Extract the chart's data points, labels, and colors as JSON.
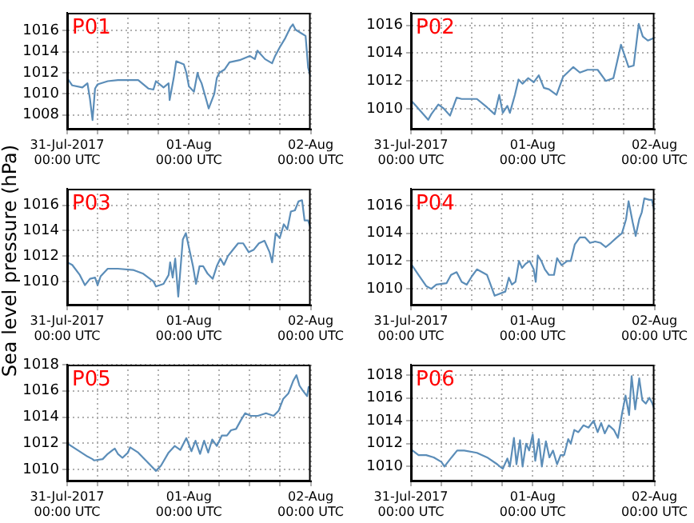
{
  "chart_data": [
    {
      "type": "line",
      "title": "P01",
      "color": "#5b8db8",
      "xlim": [
        "2017-07-31T00:00",
        "2017-08-02T00:00"
      ],
      "ylim": [
        1006.6,
        1017.7
      ],
      "yticks": [
        1008,
        1010,
        1012,
        1014,
        1016
      ],
      "grid": true,
      "legend": false,
      "marker": "none",
      "line_style": "solid",
      "xticks": [
        {
          "value": "2017-07-31T00:00",
          "label": "31-Jul-2017\n00:00 UTC"
        },
        {
          "value": "2017-07-31T06:00",
          "label": null
        },
        {
          "value": "2017-07-31T12:00",
          "label": null
        },
        {
          "value": "2017-07-31T18:00",
          "label": null
        },
        {
          "value": "2017-08-01T00:00",
          "label": "01-Aug\n00:00 UTC"
        },
        {
          "value": "2017-08-01T06:00",
          "label": null
        },
        {
          "value": "2017-08-01T12:00",
          "label": null
        },
        {
          "value": "2017-08-01T18:00",
          "label": null
        },
        {
          "value": "2017-08-02T00:00",
          "label": "02-Aug\n00:00 UTC"
        }
      ],
      "x": [
        "2017-07-31T00:00",
        "2017-07-31T01:00",
        "2017-07-31T03:00",
        "2017-07-31T04:00",
        "2017-07-31T04:30",
        "2017-07-31T05:00",
        "2017-07-31T05:30",
        "2017-07-31T06:00",
        "2017-07-31T08:00",
        "2017-07-31T10:00",
        "2017-07-31T14:00",
        "2017-07-31T16:00",
        "2017-07-31T17:00",
        "2017-07-31T17:30",
        "2017-07-31T19:00",
        "2017-07-31T20:00",
        "2017-07-31T20:12",
        "2017-07-31T21:00",
        "2017-07-31T21:30",
        "2017-07-31T23:00",
        "2017-07-31T23:30",
        "2017-08-01T00:00",
        "2017-08-01T01:00",
        "2017-08-01T01:42",
        "2017-08-01T02:00",
        "2017-08-01T02:30",
        "2017-08-01T03:30",
        "2017-08-01T03:54",
        "2017-08-01T05:00",
        "2017-08-01T05:30",
        "2017-08-01T06:00",
        "2017-08-01T07:00",
        "2017-08-01T08:00",
        "2017-08-01T10:00",
        "2017-08-01T12:00",
        "2017-08-01T13:00",
        "2017-08-01T13:30",
        "2017-08-01T15:00",
        "2017-08-01T16:24",
        "2017-08-01T17:00",
        "2017-08-01T18:00",
        "2017-08-01T19:00",
        "2017-08-01T20:00",
        "2017-08-01T20:30",
        "2017-08-01T21:00",
        "2017-08-01T22:00",
        "2017-08-01T23:00",
        "2017-08-01T23:30",
        "2017-08-02T00:00"
      ],
      "values": [
        1011.5,
        1010.8,
        1010.6,
        1011,
        1009.5,
        1007.5,
        1010.5,
        1010.9,
        1011.2,
        1011.3,
        1011.3,
        1010.5,
        1010.4,
        1011.2,
        1010.6,
        1011,
        1009.4,
        1011.5,
        1013.1,
        1012.8,
        1012,
        1010.7,
        1010.2,
        1012,
        1011.5,
        1011,
        1009.3,
        1008.6,
        1010,
        1011.5,
        1012,
        1012.3,
        1013,
        1013.2,
        1013.6,
        1013.3,
        1014.1,
        1013.3,
        1012.9,
        1013.6,
        1014.5,
        1015.3,
        1016.3,
        1016.6,
        1016.1,
        1015.8,
        1015.5,
        1012.5,
        1011.6
      ]
    },
    {
      "type": "line",
      "title": "P02",
      "color": "#5b8db8",
      "xlim": [
        "2017-07-31T00:00",
        "2017-08-02T00:00"
      ],
      "ylim": [
        1008.5,
        1016.9
      ],
      "yticks": [
        1010,
        1012,
        1014,
        1016
      ],
      "grid": true,
      "legend": false,
      "marker": "none",
      "line_style": "solid",
      "xticks": [
        {
          "value": "2017-07-31T00:00",
          "label": "31-Jul-2017\n00:00 UTC"
        },
        {
          "value": "2017-07-31T06:00",
          "label": null
        },
        {
          "value": "2017-07-31T12:00",
          "label": null
        },
        {
          "value": "2017-07-31T18:00",
          "label": null
        },
        {
          "value": "2017-08-01T00:00",
          "label": "01-Aug\n00:00 UTC"
        },
        {
          "value": "2017-08-01T06:00",
          "label": null
        },
        {
          "value": "2017-08-01T12:00",
          "label": null
        },
        {
          "value": "2017-08-01T18:00",
          "label": null
        },
        {
          "value": "2017-08-02T00:00",
          "label": "02-Aug\n00:00 UTC"
        }
      ],
      "x": [
        "2017-07-31T00:00",
        "2017-07-31T01:00",
        "2017-07-31T03:24",
        "2017-07-31T04:00",
        "2017-07-31T05:24",
        "2017-07-31T06:30",
        "2017-07-31T07:42",
        "2017-07-31T09:00",
        "2017-07-31T10:00",
        "2017-07-31T13:00",
        "2017-07-31T15:00",
        "2017-07-31T16:30",
        "2017-07-31T17:24",
        "2017-07-31T18:06",
        "2017-07-31T19:00",
        "2017-07-31T19:30",
        "2017-07-31T20:30",
        "2017-07-31T21:12",
        "2017-07-31T22:00",
        "2017-07-31T23:06",
        "2017-08-01T00:12",
        "2017-08-01T01:12",
        "2017-08-01T02:12",
        "2017-08-01T03:12",
        "2017-08-01T04:42",
        "2017-08-01T06:00",
        "2017-08-01T08:00",
        "2017-08-01T09:18",
        "2017-08-01T10:48",
        "2017-08-01T12:48",
        "2017-08-01T14:24",
        "2017-08-01T15:54",
        "2017-08-01T17:24",
        "2017-08-01T18:54",
        "2017-08-01T19:54",
        "2017-08-01T20:54",
        "2017-08-01T21:42",
        "2017-08-01T22:42",
        "2017-08-02T00:00"
      ],
      "values": [
        1010.6,
        1010.2,
        1009.2,
        1009.6,
        1010.3,
        1010,
        1009.5,
        1010.8,
        1010.7,
        1010.7,
        1010.1,
        1009.6,
        1011,
        1009.7,
        1010.2,
        1009.7,
        1011,
        1012.1,
        1011.8,
        1012.2,
        1011.9,
        1012.4,
        1011.5,
        1011.4,
        1011,
        1012.3,
        1013,
        1012.6,
        1012.8,
        1012.8,
        1012,
        1012.2,
        1014.6,
        1013,
        1013.1,
        1016.1,
        1015.2,
        1014.9,
        1015.1
      ]
    },
    {
      "type": "line",
      "title": "P03",
      "ylabel": "Sea level pressure (hPa)",
      "color": "#5b8db8",
      "xlim": [
        "2017-07-31T00:00",
        "2017-08-02T00:00"
      ],
      "ylim": [
        1008.1,
        1017.3
      ],
      "yticks": [
        1010,
        1012,
        1014,
        1016
      ],
      "grid": true,
      "legend": false,
      "marker": "none",
      "line_style": "solid",
      "xticks": [
        {
          "value": "2017-07-31T00:00",
          "label": "31-Jul-2017\n00:00 UTC"
        },
        {
          "value": "2017-07-31T06:00",
          "label": null
        },
        {
          "value": "2017-07-31T12:00",
          "label": null
        },
        {
          "value": "2017-07-31T18:00",
          "label": null
        },
        {
          "value": "2017-08-01T00:00",
          "label": "01-Aug\n00:00 UTC"
        },
        {
          "value": "2017-08-01T06:00",
          "label": null
        },
        {
          "value": "2017-08-01T12:00",
          "label": null
        },
        {
          "value": "2017-08-01T18:00",
          "label": null
        },
        {
          "value": "2017-08-02T00:00",
          "label": "02-Aug\n00:00 UTC"
        }
      ],
      "x": [
        "2017-07-31T00:00",
        "2017-07-31T01:00",
        "2017-07-31T02:30",
        "2017-07-31T03:30",
        "2017-07-31T04:30",
        "2017-07-31T05:30",
        "2017-07-31T06:00",
        "2017-07-31T06:36",
        "2017-07-31T08:00",
        "2017-07-31T10:00",
        "2017-07-31T13:00",
        "2017-07-31T15:00",
        "2017-07-31T17:00",
        "2017-07-31T17:30",
        "2017-07-31T19:00",
        "2017-07-31T20:00",
        "2017-07-31T20:18",
        "2017-07-31T20:48",
        "2017-07-31T21:18",
        "2017-07-31T21:54",
        "2017-07-31T22:48",
        "2017-07-31T23:24",
        "2017-08-01T00:06",
        "2017-08-01T00:48",
        "2017-08-01T01:24",
        "2017-08-01T02:06",
        "2017-08-01T02:48",
        "2017-08-01T03:42",
        "2017-08-01T04:42",
        "2017-08-01T05:30",
        "2017-08-01T06:12",
        "2017-08-01T06:54",
        "2017-08-01T07:42",
        "2017-08-01T08:30",
        "2017-08-01T09:42",
        "2017-08-01T10:42",
        "2017-08-01T11:48",
        "2017-08-01T12:48",
        "2017-08-01T13:48",
        "2017-08-01T14:54",
        "2017-08-01T15:54",
        "2017-08-01T16:24",
        "2017-08-01T17:06",
        "2017-08-01T17:54",
        "2017-08-01T18:42",
        "2017-08-01T19:24",
        "2017-08-01T20:06",
        "2017-08-01T20:54",
        "2017-08-01T21:36",
        "2017-08-01T22:18",
        "2017-08-01T22:48",
        "2017-08-01T23:30",
        "2017-08-02T00:00"
      ],
      "values": [
        1011.5,
        1011.3,
        1010.5,
        1009.7,
        1010.2,
        1010.3,
        1009.7,
        1010.4,
        1011,
        1011,
        1010.9,
        1010.6,
        1010,
        1009.6,
        1009.8,
        1010.5,
        1011.5,
        1010.3,
        1011.8,
        1008.8,
        1013.3,
        1013.8,
        1012.5,
        1011.2,
        1009.8,
        1011.2,
        1011.2,
        1010.6,
        1010.2,
        1011.2,
        1011.8,
        1011.3,
        1012,
        1012.4,
        1013,
        1013,
        1012.3,
        1012.5,
        1013,
        1013.2,
        1012.3,
        1011.5,
        1013.8,
        1013.4,
        1014.5,
        1014.1,
        1015.5,
        1015.6,
        1016.3,
        1016.4,
        1014.8,
        1014.8,
        1014.2
      ]
    },
    {
      "type": "line",
      "title": "P04",
      "color": "#5b8db8",
      "xlim": [
        "2017-07-31T00:00",
        "2017-08-02T00:00"
      ],
      "ylim": [
        1008.8,
        1017.2
      ],
      "yticks": [
        1010,
        1012,
        1014,
        1016
      ],
      "grid": true,
      "legend": false,
      "marker": "none",
      "line_style": "solid",
      "xticks": [
        {
          "value": "2017-07-31T00:00",
          "label": "31-Jul-2017\n00:00 UTC"
        },
        {
          "value": "2017-07-31T06:00",
          "label": null
        },
        {
          "value": "2017-07-31T12:00",
          "label": null
        },
        {
          "value": "2017-07-31T18:00",
          "label": null
        },
        {
          "value": "2017-08-01T00:00",
          "label": "01-Aug\n00:00 UTC"
        },
        {
          "value": "2017-08-01T06:00",
          "label": null
        },
        {
          "value": "2017-08-01T12:00",
          "label": null
        },
        {
          "value": "2017-08-01T18:00",
          "label": null
        },
        {
          "value": "2017-08-02T00:00",
          "label": "02-Aug\n00:00 UTC"
        }
      ],
      "x": [
        "2017-07-31T00:00",
        "2017-07-31T01:30",
        "2017-07-31T03:00",
        "2017-07-31T04:00",
        "2017-07-31T05:00",
        "2017-07-31T07:00",
        "2017-07-31T07:54",
        "2017-07-31T09:00",
        "2017-07-31T10:00",
        "2017-07-31T11:00",
        "2017-07-31T12:00",
        "2017-07-31T13:00",
        "2017-07-31T15:00",
        "2017-07-31T16:30",
        "2017-07-31T18:36",
        "2017-07-31T19:18",
        "2017-07-31T19:54",
        "2017-07-31T20:36",
        "2017-07-31T21:18",
        "2017-07-31T21:54",
        "2017-07-31T22:36",
        "2017-07-31T23:24",
        "2017-08-01T00:12",
        "2017-08-01T00:36",
        "2017-08-01T01:00",
        "2017-08-01T01:42",
        "2017-08-01T02:24",
        "2017-08-01T03:12",
        "2017-08-01T04:12",
        "2017-08-01T04:48",
        "2017-08-01T05:42",
        "2017-08-01T06:48",
        "2017-08-01T07:30",
        "2017-08-01T08:18",
        "2017-08-01T09:18",
        "2017-08-01T10:18",
        "2017-08-01T11:18",
        "2017-08-01T12:18",
        "2017-08-01T13:24",
        "2017-08-01T14:24",
        "2017-08-01T15:24",
        "2017-08-01T16:36",
        "2017-08-01T17:36",
        "2017-08-01T18:24",
        "2017-08-01T18:54",
        "2017-08-01T19:42",
        "2017-08-01T20:18",
        "2017-08-01T21:00",
        "2017-08-01T21:30",
        "2017-08-01T22:00",
        "2017-08-01T23:00",
        "2017-08-01T23:30",
        "2017-08-02T00:00"
      ],
      "values": [
        1011.8,
        1011,
        1010.2,
        1010,
        1010.3,
        1010.4,
        1011,
        1011.2,
        1010.5,
        1010.3,
        1010.9,
        1011.4,
        1011,
        1009.5,
        1009.8,
        1010.8,
        1010.3,
        1010.5,
        1012,
        1011.5,
        1011.8,
        1012,
        1011.4,
        1010.5,
        1012.4,
        1012,
        1011.4,
        1011,
        1011,
        1012.2,
        1011.7,
        1012,
        1012,
        1013.2,
        1013.7,
        1013.7,
        1013.3,
        1013.4,
        1013.3,
        1013,
        1013.3,
        1013.7,
        1014,
        1015,
        1016.3,
        1014.8,
        1013.8,
        1015,
        1015.5,
        1016.5,
        1016.4,
        1016.4,
        1015.6
      ]
    },
    {
      "type": "line",
      "title": "P05",
      "color": "#5b8db8",
      "xlim": [
        "2017-07-31T00:00",
        "2017-08-02T00:00"
      ],
      "ylim": [
        1009.1,
        1018
      ],
      "yticks": [
        1010,
        1012,
        1014,
        1016,
        1018
      ],
      "grid": true,
      "legend": false,
      "marker": "none",
      "line_style": "solid",
      "xticks": [
        {
          "value": "2017-07-31T00:00",
          "label": "31-Jul-2017\n00:00 UTC"
        },
        {
          "value": "2017-07-31T06:00",
          "label": null
        },
        {
          "value": "2017-07-31T12:00",
          "label": null
        },
        {
          "value": "2017-07-31T18:00",
          "label": null
        },
        {
          "value": "2017-08-01T00:00",
          "label": "01-Aug\n00:00 UTC"
        },
        {
          "value": "2017-08-01T06:00",
          "label": null
        },
        {
          "value": "2017-08-01T12:00",
          "label": null
        },
        {
          "value": "2017-08-01T18:00",
          "label": null
        },
        {
          "value": "2017-08-02T00:00",
          "label": "02-Aug\n00:00 UTC"
        }
      ],
      "x": [
        "2017-07-31T00:00",
        "2017-07-31T02:00",
        "2017-07-31T04:00",
        "2017-07-31T05:00",
        "2017-07-31T05:18",
        "2017-07-31T07:00",
        "2017-07-31T08:00",
        "2017-07-31T09:00",
        "2017-07-31T09:24",
        "2017-07-31T10:00",
        "2017-07-31T10:54",
        "2017-07-31T12:00",
        "2017-07-31T12:24",
        "2017-07-31T14:00",
        "2017-07-31T15:30",
        "2017-07-31T16:30",
        "2017-07-31T17:30",
        "2017-07-31T18:30",
        "2017-07-31T20:00",
        "2017-07-31T21:12",
        "2017-07-31T22:18",
        "2017-07-31T23:30",
        "2017-08-01T00:30",
        "2017-08-01T01:18",
        "2017-08-01T02:12",
        "2017-08-01T03:00",
        "2017-08-01T03:48",
        "2017-08-01T04:36",
        "2017-08-01T05:30",
        "2017-08-01T06:30",
        "2017-08-01T07:30",
        "2017-08-01T08:18",
        "2017-08-01T09:18",
        "2017-08-01T10:18",
        "2017-08-01T11:06",
        "2017-08-01T12:12",
        "2017-08-01T13:36",
        "2017-08-01T15:12",
        "2017-08-01T16:42",
        "2017-08-01T17:42",
        "2017-08-01T18:36",
        "2017-08-01T19:36",
        "2017-08-01T20:36",
        "2017-08-01T21:12",
        "2017-08-01T21:48",
        "2017-08-01T22:30",
        "2017-08-01T23:18",
        "2017-08-01T23:36",
        "2017-08-02T00:00"
      ],
      "values": [
        1012,
        1011.5,
        1011,
        1010.8,
        1010.7,
        1010.8,
        1011.2,
        1011.5,
        1011.6,
        1011.2,
        1010.9,
        1011.3,
        1011.7,
        1011.3,
        1010.7,
        1010.3,
        1009.9,
        1010.3,
        1011.3,
        1011.8,
        1011.5,
        1012.4,
        1011.4,
        1012.2,
        1011.2,
        1012.2,
        1011.3,
        1012.3,
        1011.8,
        1012.6,
        1012.6,
        1013,
        1013.1,
        1013.8,
        1014.3,
        1014.1,
        1014.1,
        1014.3,
        1014.1,
        1014.5,
        1015.4,
        1015.8,
        1016.8,
        1017.2,
        1016.4,
        1016,
        1015.6,
        1016.3,
        1016.2
      ]
    },
    {
      "type": "line",
      "title": "P06",
      "color": "#5b8db8",
      "xlim": [
        "2017-07-31T00:00",
        "2017-08-02T00:00"
      ],
      "ylim": [
        1008.7,
        1018.9
      ],
      "yticks": [
        1010,
        1012,
        1014,
        1016,
        1018
      ],
      "grid": true,
      "legend": false,
      "marker": "none",
      "line_style": "solid",
      "xticks": [
        {
          "value": "2017-07-31T00:00",
          "label": "31-Jul-2017\n00:00 UTC"
        },
        {
          "value": "2017-07-31T06:00",
          "label": null
        },
        {
          "value": "2017-07-31T12:00",
          "label": null
        },
        {
          "value": "2017-07-31T18:00",
          "label": null
        },
        {
          "value": "2017-08-01T00:00",
          "label": "01-Aug\n00:00 UTC"
        },
        {
          "value": "2017-08-01T06:00",
          "label": null
        },
        {
          "value": "2017-08-01T12:00",
          "label": null
        },
        {
          "value": "2017-08-01T18:00",
          "label": null
        },
        {
          "value": "2017-08-02T00:00",
          "label": "02-Aug\n00:00 UTC"
        }
      ],
      "x": [
        "2017-07-31T00:00",
        "2017-07-31T01:30",
        "2017-07-31T03:00",
        "2017-07-31T04:30",
        "2017-07-31T06:00",
        "2017-07-31T06:36",
        "2017-07-31T08:00",
        "2017-07-31T09:06",
        "2017-07-31T10:30",
        "2017-07-31T13:00",
        "2017-07-31T15:00",
        "2017-07-31T17:00",
        "2017-07-31T18:06",
        "2017-07-31T19:00",
        "2017-07-31T19:30",
        "2017-07-31T20:18",
        "2017-07-31T20:48",
        "2017-07-31T21:30",
        "2017-07-31T22:00",
        "2017-07-31T22:42",
        "2017-07-31T23:18",
        "2017-08-01T00:00",
        "2017-08-01T00:30",
        "2017-08-01T01:12",
        "2017-08-01T01:48",
        "2017-08-01T02:36",
        "2017-08-01T03:18",
        "2017-08-01T04:00",
        "2017-08-01T04:48",
        "2017-08-01T05:30",
        "2017-08-01T06:12",
        "2017-08-01T07:00",
        "2017-08-01T07:30",
        "2017-08-01T08:12",
        "2017-08-01T09:00",
        "2017-08-01T10:00",
        "2017-08-01T11:00",
        "2017-08-01T12:00",
        "2017-08-01T12:48",
        "2017-08-01T13:30",
        "2017-08-01T14:12",
        "2017-08-01T15:00",
        "2017-08-01T16:00",
        "2017-08-01T16:48",
        "2017-08-01T17:36",
        "2017-08-01T18:18",
        "2017-08-01T19:00",
        "2017-08-01T19:30",
        "2017-08-01T20:12",
        "2017-08-01T21:00",
        "2017-08-01T21:36",
        "2017-08-01T22:18",
        "2017-08-01T23:00",
        "2017-08-01T23:30",
        "2017-08-02T00:00"
      ],
      "values": [
        1011.5,
        1011,
        1011,
        1010.8,
        1010.4,
        1010,
        1010.8,
        1011.4,
        1011.4,
        1011.2,
        1010.8,
        1010.2,
        1009.8,
        1010.7,
        1010,
        1012.5,
        1010.2,
        1012.3,
        1010,
        1012,
        1011.4,
        1012.8,
        1010.5,
        1012.4,
        1010,
        1012.2,
        1010.8,
        1011.4,
        1010.2,
        1011,
        1011,
        1012.4,
        1012,
        1013.2,
        1013,
        1013.6,
        1013.4,
        1014,
        1013,
        1013.8,
        1012.9,
        1013.6,
        1013.2,
        1012.5,
        1014.6,
        1016.2,
        1014.5,
        1017.9,
        1015,
        1017.7,
        1015.8,
        1015.5,
        1016,
        1015.6,
        1015
      ]
    }
  ]
}
